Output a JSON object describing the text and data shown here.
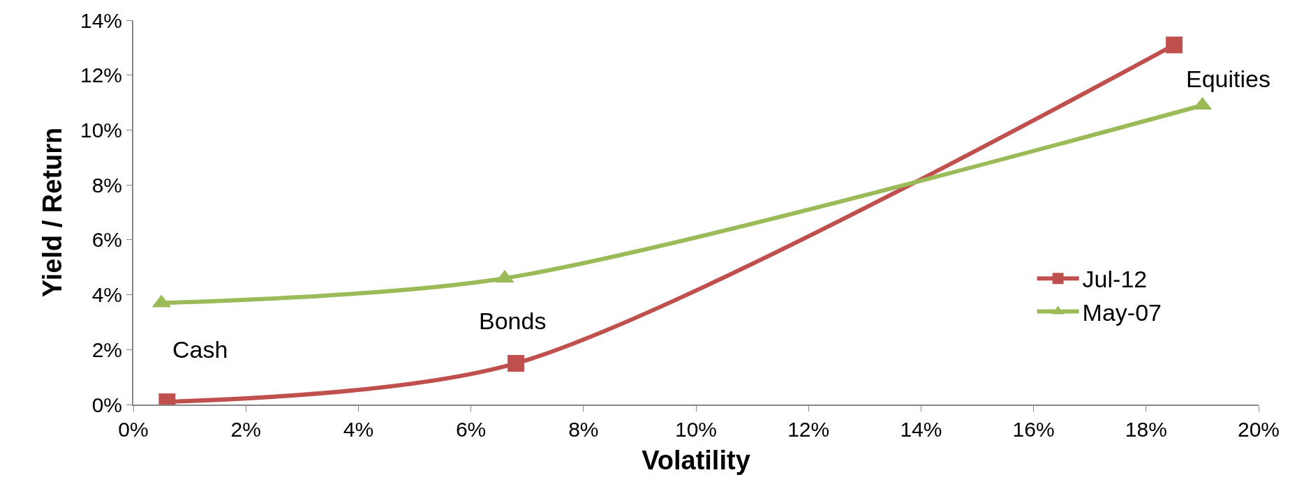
{
  "chart_data": {
    "type": "line",
    "xlabel": "Volatility",
    "ylabel": "Yield / Return",
    "series": [
      {
        "name": "Jul-12",
        "color": "#c0504d",
        "marker": "square",
        "x": [
          0.6,
          6.8,
          18.5
        ],
        "values": [
          0.1,
          1.5,
          13.1
        ]
      },
      {
        "name": "May-07",
        "color": "#9bbb59",
        "marker": "triangle",
        "x": [
          0.5,
          6.6,
          19.0
        ],
        "values": [
          3.7,
          4.6,
          10.9
        ]
      }
    ],
    "xlim": [
      0,
      20
    ],
    "ylim": [
      0,
      14
    ],
    "xticks": [
      {
        "value": 0,
        "label": "0%"
      },
      {
        "value": 2,
        "label": "2%"
      },
      {
        "value": 4,
        "label": "4%"
      },
      {
        "value": 6,
        "label": "6%"
      },
      {
        "value": 8,
        "label": "8%"
      },
      {
        "value": 10,
        "label": "10%"
      },
      {
        "value": 12,
        "label": "12%"
      },
      {
        "value": 14,
        "label": "14%"
      },
      {
        "value": 16,
        "label": "16%"
      },
      {
        "value": 18,
        "label": "18%"
      },
      {
        "value": 20,
        "label": "20%"
      }
    ],
    "yticks": [
      {
        "value": 0,
        "label": "0%"
      },
      {
        "value": 2,
        "label": "2%"
      },
      {
        "value": 4,
        "label": "4%"
      },
      {
        "value": 6,
        "label": "6%"
      },
      {
        "value": 8,
        "label": "8%"
      },
      {
        "value": 10,
        "label": "10%"
      },
      {
        "value": 12,
        "label": "12%"
      },
      {
        "value": 14,
        "label": "14%"
      }
    ],
    "annotations": [
      "Cash",
      "Bonds",
      "Equities"
    ],
    "legend": "right",
    "line_style": "solid"
  }
}
